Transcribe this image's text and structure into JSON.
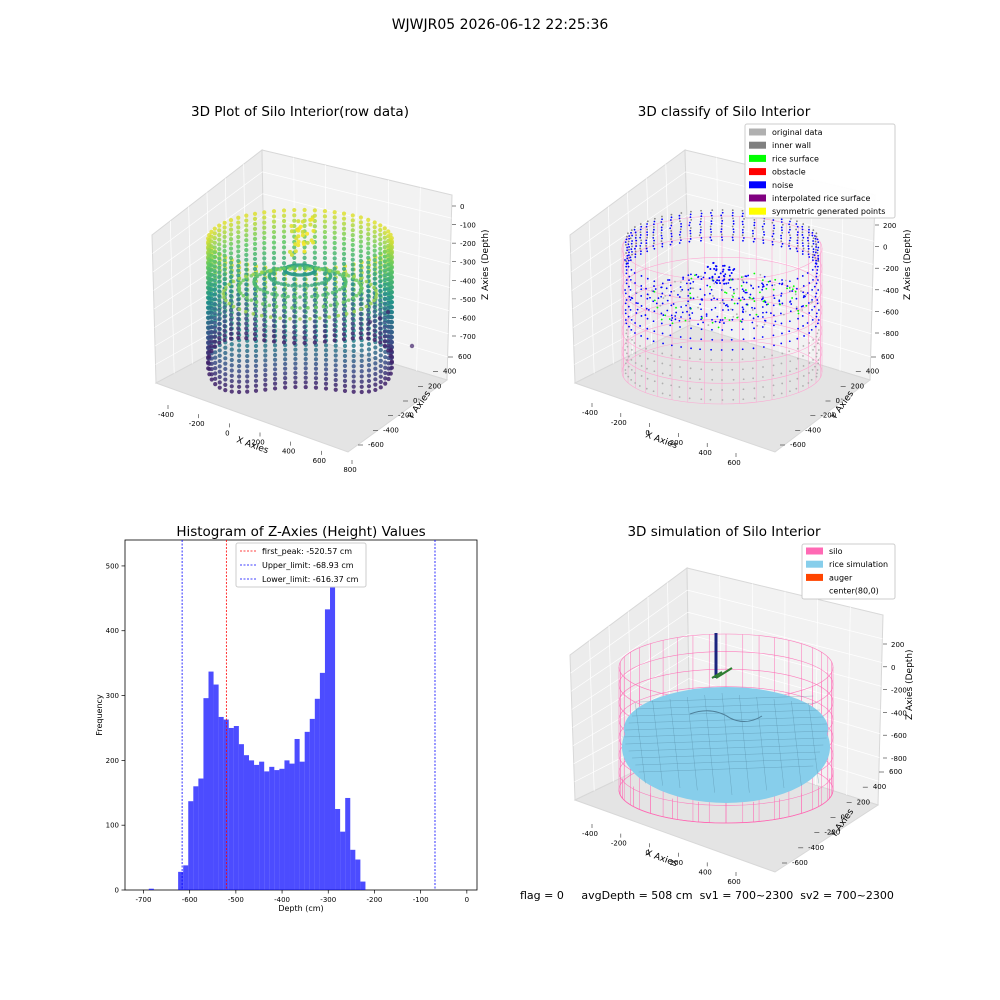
{
  "figure": {
    "suptitle": "WJWJR05 2026-06-12 22:25:36",
    "footer": {
      "flag": "flag = 0",
      "avg_depth": "avgDepth = 508 cm",
      "sv1": "sv1 = 700~2300",
      "sv2": "sv2 = 700~2300"
    }
  },
  "colors": {
    "hist_bar": "#0000ff",
    "first_peak_line": "#ff0000",
    "limit_lines": "#0000ff",
    "silo": "#ff69b4",
    "rice_simulation": "#87ceeb",
    "auger": "#ff4500"
  },
  "chart_data": [
    {
      "type": "scatter",
      "projection": "3d",
      "title": "3D Plot of Silo Interior(row data)",
      "xlabel": "X Axies",
      "ylabel": "Y Axies",
      "zlabel": "Z Axies (Depth)",
      "x_ticks": [
        "-400",
        "-200",
        "0",
        "200",
        "400",
        "600",
        "800"
      ],
      "y_ticks": [
        "600",
        "400",
        "200",
        "0",
        "-200",
        "-400",
        "-600"
      ],
      "z_ticks": [
        "0",
        "-100",
        "-200",
        "-300",
        "-400",
        "-500",
        "-600",
        "-700"
      ],
      "colormap": "viridis"
    },
    {
      "type": "scatter",
      "projection": "3d",
      "title": "3D classify of Silo Interior",
      "xlabel": "X Axies",
      "ylabel": "Y Axies",
      "zlabel": "Z Axies (Depth)",
      "x_ticks": [
        "-400",
        "-200",
        "0",
        "200",
        "400",
        "600"
      ],
      "y_ticks": [
        "600",
        "400",
        "200",
        "0",
        "-200",
        "-400",
        "-600"
      ],
      "z_ticks": [
        "200",
        "0",
        "-200",
        "-400",
        "-600",
        "-800"
      ],
      "legend_position": "top-right",
      "legend": [
        {
          "label": "original data",
          "color": "#b0b0b0"
        },
        {
          "label": "inner wall",
          "color": "#808080"
        },
        {
          "label": "rice surface",
          "color": "#00ff00"
        },
        {
          "label": "obstacle",
          "color": "#ff0000"
        },
        {
          "label": "noise",
          "color": "#0000ff"
        },
        {
          "label": "interpolated rice surface",
          "color": "#800080"
        },
        {
          "label": "symmetric generated points",
          "color": "#ffff00"
        }
      ]
    },
    {
      "type": "bar",
      "title": "Histogram of Z-Axies (Height) Values",
      "xlabel": "Depth (cm)",
      "ylabel": "Frequency",
      "xlim": [
        -740,
        22
      ],
      "ylim": [
        0,
        540
      ],
      "x_ticks": [
        -700,
        -600,
        -500,
        -400,
        -300,
        -200,
        -100,
        0
      ],
      "y_ticks": [
        0,
        100,
        200,
        300,
        400,
        500
      ],
      "bin_start": -625,
      "bin_width": 10.96,
      "values": [
        28,
        38,
        137,
        160,
        172,
        296,
        337,
        317,
        267,
        263,
        250,
        253,
        225,
        208,
        200,
        193,
        198,
        183,
        190,
        185,
        187,
        200,
        195,
        233,
        198,
        244,
        264,
        295,
        335,
        433,
        516,
        125,
        90,
        142,
        62,
        47,
        13
      ],
      "outliers": [
        {
          "x": -683,
          "value": 2
        }
      ],
      "legend_position": "top-center",
      "lines": [
        {
          "label": "first_peak: -520.57 cm",
          "x": -520.57,
          "color": "#ff0000"
        },
        {
          "label": "Upper_limit: -68.93 cm",
          "x": -68.93,
          "color": "#0000ff"
        },
        {
          "label": "Lower_limit: -616.37 cm",
          "x": -616.37,
          "color": "#0000ff"
        }
      ]
    },
    {
      "type": "surface",
      "projection": "3d",
      "title": "3D simulation of Silo Interior",
      "xlabel": "X Axies",
      "ylabel": "Y Axies",
      "zlabel": "Z Axies (Depth)",
      "x_ticks": [
        "-400",
        "-200",
        "0",
        "200",
        "400",
        "600"
      ],
      "y_ticks": [
        "600",
        "400",
        "200",
        "0",
        "-200",
        "-400",
        "-600"
      ],
      "z_ticks": [
        "200",
        "0",
        "-200",
        "-400",
        "-600",
        "-800"
      ],
      "legend_position": "top-right",
      "legend": [
        {
          "label": "silo",
          "color": "#ff69b4"
        },
        {
          "label": "rice simulation",
          "color": "#87ceeb"
        },
        {
          "label": "auger",
          "color": "#ff4500"
        },
        {
          "label": "center(80,0)",
          "color": ""
        }
      ]
    }
  ]
}
